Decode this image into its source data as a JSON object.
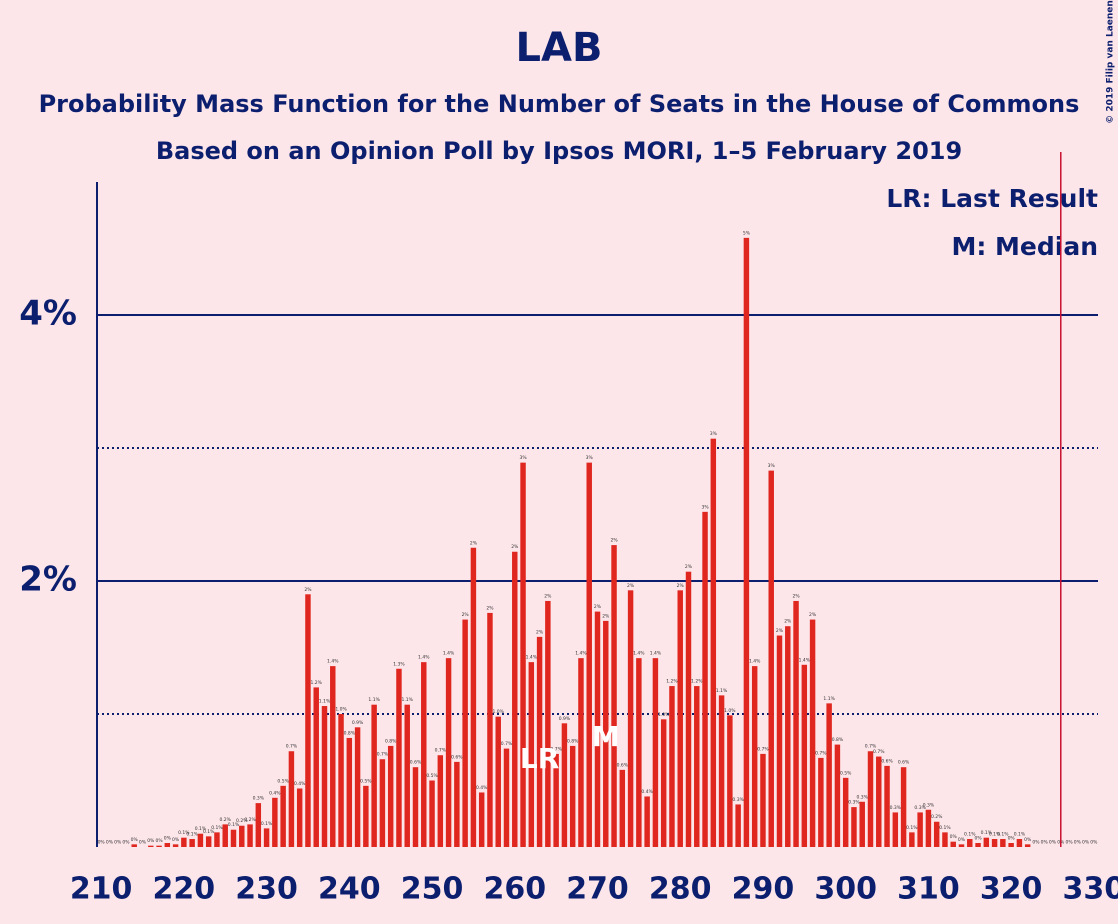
{
  "chart_data": {
    "type": "bar",
    "title": "LAB",
    "subtitle": [
      "Probability Mass Function for the Number of Seats in the House of Commons",
      "Based on an Opinion Poll by Ipsos MORI, 1–5 February 2019"
    ],
    "copyright": "© 2019 Filip van Laenen",
    "legend": [
      "LR: Last Result",
      "M: Median"
    ],
    "color": "#e0271f",
    "x": [
      210,
      211,
      212,
      213,
      214,
      215,
      216,
      217,
      218,
      219,
      220,
      221,
      222,
      223,
      224,
      225,
      226,
      227,
      228,
      229,
      230,
      231,
      232,
      233,
      234,
      235,
      236,
      237,
      238,
      239,
      240,
      241,
      242,
      243,
      244,
      245,
      246,
      247,
      248,
      249,
      250,
      251,
      252,
      253,
      254,
      255,
      256,
      257,
      258,
      259,
      260,
      261,
      262,
      263,
      264,
      265,
      266,
      267,
      268,
      269,
      270,
      271,
      272,
      273,
      274,
      275,
      276,
      277,
      278,
      279,
      280,
      281,
      282,
      283,
      284,
      285,
      286,
      287,
      288,
      289,
      290,
      291,
      292,
      293,
      294,
      295,
      296,
      297,
      298,
      299,
      300,
      301,
      302,
      303,
      304,
      305,
      306,
      307,
      308,
      309,
      310,
      311,
      312,
      313,
      314,
      315,
      316,
      317,
      318,
      319,
      320,
      321,
      322,
      323,
      324,
      325,
      326,
      327,
      328,
      329,
      330
    ],
    "values": [
      0,
      0,
      0,
      0,
      0.02,
      0,
      0.01,
      0.01,
      0.03,
      0.02,
      0.07,
      0.06,
      0.1,
      0.08,
      0.11,
      0.17,
      0.13,
      0.16,
      0.17,
      0.33,
      0.14,
      0.37,
      0.46,
      0.72,
      0.44,
      1.9,
      1.2,
      1.06,
      1.36,
      1.0,
      0.82,
      0.9,
      0.46,
      1.07,
      0.66,
      0.76,
      1.34,
      1.07,
      0.6,
      1.39,
      0.5,
      0.69,
      1.42,
      0.64,
      1.71,
      2.25,
      0.41,
      1.76,
      0.98,
      0.74,
      2.22,
      2.89,
      1.39,
      1.58,
      1.85,
      0.7,
      0.93,
      0.76,
      1.42,
      2.89,
      1.77,
      1.7,
      2.27,
      0.58,
      1.93,
      1.42,
      0.38,
      1.42,
      0.96,
      1.21,
      1.93,
      2.07,
      1.21,
      2.52,
      3.07,
      1.14,
      0.99,
      0.32,
      4.58,
      1.36,
      0.7,
      2.83,
      1.59,
      1.66,
      1.85,
      1.37,
      1.71,
      0.67,
      1.08,
      0.77,
      0.52,
      0.3,
      0.34,
      0.72,
      0.68,
      0.61,
      0.26,
      0.6,
      0.11,
      0.26,
      0.28,
      0.19,
      0.11,
      0.04,
      0.02,
      0.06,
      0.03,
      0.07,
      0.06,
      0.06,
      0.03,
      0.06,
      0.02,
      0,
      0,
      0,
      0,
      0,
      0,
      0,
      0
    ],
    "value_labels": [
      "0%",
      "0%",
      "0%",
      "0%",
      "0%",
      "0%",
      "0%",
      "0%",
      "0%",
      "0%",
      "0.1%",
      "0.1%",
      "0.1%",
      "0.1%",
      "0.1%",
      "0.2%",
      "0.1%",
      "0.2%",
      "0.2%",
      "0.3%",
      "0.1%",
      "0.4%",
      "0.5%",
      "0.7%",
      "0.4%",
      "2%",
      "1.2%",
      "1.1%",
      "1.4%",
      "1.0%",
      "0.8%",
      "0.9%",
      "0.5%",
      "1.1%",
      "0.7%",
      "0.8%",
      "1.3%",
      "1.1%",
      "0.6%",
      "1.4%",
      "0.5%",
      "0.7%",
      "1.4%",
      "0.6%",
      "2%",
      "2%",
      "0.4%",
      "2%",
      "1.0%",
      "0.7%",
      "2%",
      "3%",
      "1.4%",
      "2%",
      "2%",
      "0.7%",
      "0.9%",
      "0.8%",
      "1.4%",
      "3%",
      "2%",
      "2%",
      "2%",
      "0.6%",
      "2%",
      "1.4%",
      "0.4%",
      "1.4%",
      "1.0%",
      "1.2%",
      "2%",
      "2%",
      "1.2%",
      "3%",
      "3%",
      "1.1%",
      "1.0%",
      "0.3%",
      "5%",
      "1.4%",
      "0.7%",
      "3%",
      "2%",
      "2%",
      "2%",
      "1.4%",
      "2%",
      "0.7%",
      "1.1%",
      "0.8%",
      "0.5%",
      "0.3%",
      "0.3%",
      "0.7%",
      "0.7%",
      "0.6%",
      "0.3%",
      "0.6%",
      "0.1%",
      "0.3%",
      "0.3%",
      "0.2%",
      "0.1%",
      "0%",
      "0%",
      "0.1%",
      "0%",
      "0.1%",
      "0.1%",
      "0.1%",
      "0%",
      "0.1%",
      "0%",
      "0%",
      "0%",
      "0%",
      "0%",
      "0%",
      "0%",
      "0%",
      "0%"
    ],
    "last_result": 263,
    "last_result_label": "LR",
    "median": 271,
    "median_label": "M",
    "majority_line": 326,
    "majority_color": "#c8102e",
    "xlim": [
      209.5,
      330.5
    ],
    "xticks": [
      210,
      220,
      230,
      240,
      250,
      260,
      270,
      280,
      290,
      300,
      310,
      320,
      330
    ],
    "ylim": [
      0,
      5
    ],
    "yticks": [
      {
        "value": 2,
        "label": "2%"
      },
      {
        "value": 4,
        "label": "4%"
      }
    ],
    "minor_yticks": [
      1,
      3
    ],
    "grid": true
  }
}
